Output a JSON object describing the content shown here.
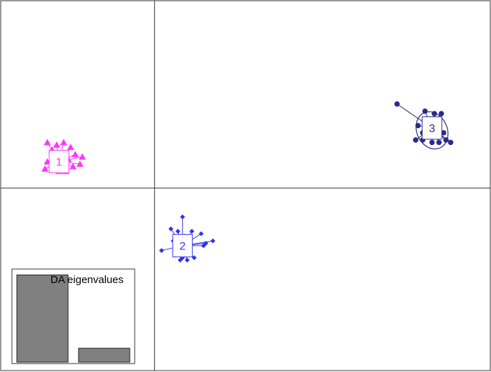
{
  "chart_data": {
    "type": "scatter",
    "title": "",
    "xlabel": "",
    "ylabel": "",
    "xlim": [
      -6.6,
      14.4
    ],
    "ylim": [
      -7.6,
      7.8
    ],
    "grid_lines": {
      "x": [
        0
      ],
      "y": [
        0
      ]
    },
    "groups": [
      {
        "label": "1",
        "color": "#ff33ff",
        "marker": "triangle",
        "centroid": [
          -4.1,
          1.1
        ],
        "points": [
          [
            -4.6,
            1.9
          ],
          [
            -4.2,
            1.8
          ],
          [
            -3.9,
            1.9
          ],
          [
            -3.6,
            1.7
          ],
          [
            -3.4,
            1.4
          ],
          [
            -3.1,
            1.3
          ],
          [
            -3.2,
            1.0
          ],
          [
            -3.5,
            0.9
          ],
          [
            -3.8,
            0.7
          ],
          [
            -4.1,
            0.7
          ],
          [
            -4.4,
            0.8
          ],
          [
            -4.7,
            0.8
          ],
          [
            -4.6,
            1.1
          ],
          [
            -4.3,
            1.4
          ],
          [
            -4.0,
            1.2
          ],
          [
            -3.7,
            1.2
          ],
          [
            -4.4,
            1.6
          ],
          [
            -3.9,
            0.8
          ]
        ]
      },
      {
        "label": "2",
        "color": "#3333ee",
        "marker": "diamond",
        "centroid": [
          1.2,
          -2.4
        ],
        "points": [
          [
            1.2,
            -1.2
          ],
          [
            0.7,
            -1.7
          ],
          [
            1.0,
            -1.8
          ],
          [
            1.6,
            -1.8
          ],
          [
            2.0,
            -1.9
          ],
          [
            2.5,
            -2.2
          ],
          [
            2.1,
            -2.4
          ],
          [
            1.7,
            -2.9
          ],
          [
            1.4,
            -3.0
          ],
          [
            1.1,
            -3.0
          ],
          [
            0.9,
            -2.8
          ],
          [
            0.3,
            -2.6
          ],
          [
            0.8,
            -2.2
          ],
          [
            1.3,
            -2.0
          ],
          [
            1.5,
            -2.6
          ],
          [
            1.2,
            -2.9
          ],
          [
            2.2,
            -2.3
          ]
        ]
      },
      {
        "label": "3",
        "color": "#2a2a88",
        "marker": "circle",
        "centroid": [
          11.9,
          2.5
        ],
        "points": [
          [
            10.4,
            3.5
          ],
          [
            11.6,
            3.2
          ],
          [
            12.0,
            3.1
          ],
          [
            12.3,
            3.1
          ],
          [
            11.3,
            2.6
          ],
          [
            11.5,
            2.3
          ],
          [
            11.5,
            2.0
          ],
          [
            11.9,
            1.9
          ],
          [
            12.2,
            1.9
          ],
          [
            12.5,
            2.0
          ],
          [
            12.7,
            1.9
          ],
          [
            12.4,
            2.3
          ],
          [
            11.2,
            2.0
          ],
          [
            12.0,
            2.6
          ]
        ],
        "ellipse": {
          "center": [
            11.9,
            2.4
          ],
          "rx": 0.65,
          "ry": 0.8,
          "tilt": 25
        }
      }
    ],
    "inset": {
      "title": "DA eigenvalues",
      "type": "bar",
      "values": [
        100,
        16
      ],
      "ylim": [
        0,
        110
      ]
    }
  }
}
